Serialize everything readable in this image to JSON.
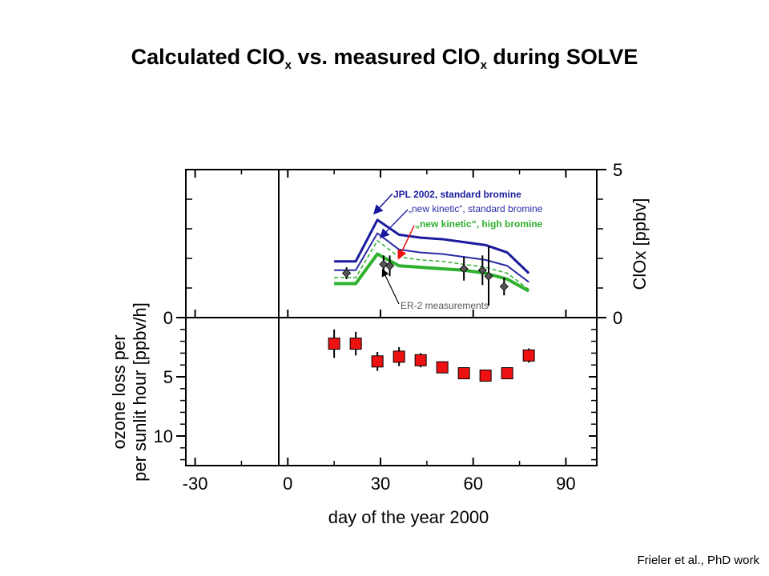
{
  "title": {
    "part1": "Calculated ClO",
    "sub1": "x",
    "part2": " vs. measured ClO",
    "sub2": "x",
    "part3": " during SOLVE"
  },
  "credit": "Frieler et al., PhD work",
  "colors": {
    "jpl": "#1a1a9e",
    "new_std": "#2a2aa6",
    "new_high": "#2fb02f",
    "measurement": "#ee1111",
    "er2": "#555555"
  },
  "chart_data": {
    "type": "scatter",
    "xlabel": "day of the year 2000",
    "xlim": [
      -33,
      100
    ],
    "x_ticks": [
      -30,
      0,
      30,
      60,
      90
    ],
    "x_tick_labels": [
      "-30",
      "0",
      "30",
      "60",
      "90"
    ],
    "upper_panel": {
      "ylabel": "ClOx [ppbv]",
      "ylim": [
        0,
        5
      ],
      "y_ticks": [
        0,
        5
      ],
      "y_tick_labels": [
        "0",
        "5"
      ],
      "series": [
        {
          "name": "JPL 2002, standard bromine",
          "style": "solid",
          "x": [
            15,
            22,
            29,
            36,
            43,
            50,
            57,
            64,
            71,
            78
          ],
          "y": [
            1.9,
            1.9,
            3.3,
            2.8,
            2.7,
            2.65,
            2.55,
            2.45,
            2.2,
            1.5
          ]
        },
        {
          "name": "„new kinetic“, standard bromine",
          "style": "dashed",
          "x": [
            15,
            22,
            29,
            36,
            43,
            50,
            57,
            64,
            71,
            78
          ],
          "y": [
            1.6,
            1.6,
            2.85,
            2.3,
            2.2,
            2.15,
            2.05,
            1.95,
            1.75,
            1.2
          ]
        },
        {
          "name": "„new kinetic“, high bromine",
          "style": "thick",
          "x": [
            15,
            22,
            29,
            36,
            43,
            50,
            57,
            64,
            71,
            78
          ],
          "y": [
            1.15,
            1.15,
            2.15,
            1.75,
            1.7,
            1.65,
            1.6,
            1.5,
            1.3,
            0.9
          ]
        },
        {
          "name": "ER-2 measurements",
          "style": "markers",
          "x": [
            19,
            31,
            33,
            57,
            63,
            65,
            70
          ],
          "y": [
            1.5,
            1.8,
            1.75,
            1.65,
            1.6,
            1.4,
            1.05
          ],
          "err": [
            0.2,
            0.3,
            0.35,
            0.4,
            0.5,
            1.0,
            0.3
          ]
        }
      ],
      "labels": {
        "jpl": "JPL 2002, standard bromine",
        "new_std": "„new kinetic“, standard bromine",
        "new_high": "„new kinetic“, high bromine",
        "er2": "ER-2 measurements"
      }
    },
    "lower_panel": {
      "ylabel_line1": "ozone loss per",
      "ylabel_line2": "per sunlit hour [ppbv/h]",
      "ylim": [
        0,
        12.5
      ],
      "inverted": true,
      "y_ticks": [
        0,
        5,
        10
      ],
      "y_tick_labels": [
        "0",
        "5",
        "10"
      ],
      "series": [
        {
          "name": "ozone loss",
          "x": [
            15,
            22,
            29,
            36,
            43,
            50,
            57,
            64,
            71,
            78
          ],
          "y": [
            2.2,
            2.2,
            3.7,
            3.3,
            3.6,
            4.2,
            4.7,
            4.9,
            4.7,
            3.2
          ],
          "err": [
            1.2,
            1.0,
            0.8,
            0.8,
            0.6,
            0.5,
            0.3,
            0.3,
            0.2,
            0.6
          ]
        }
      ]
    }
  }
}
